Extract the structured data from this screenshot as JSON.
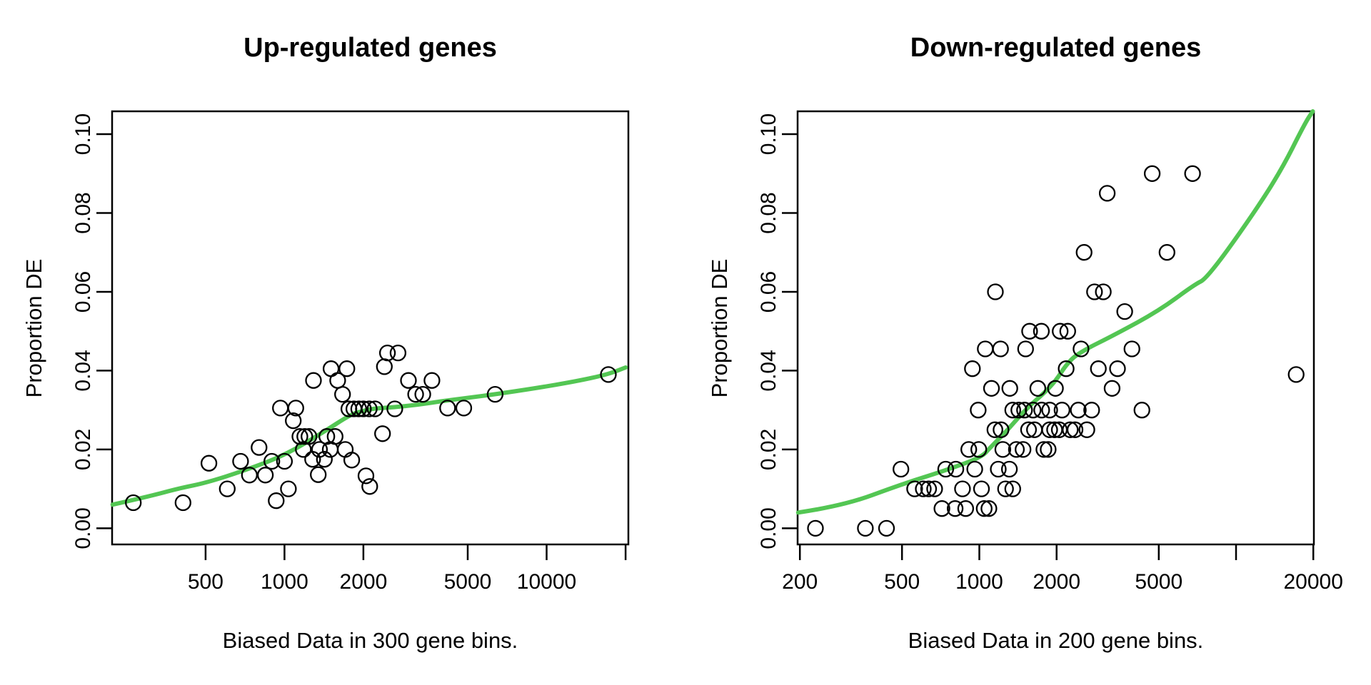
{
  "figure": {
    "left_title": "Up-regulated genes",
    "right_title": "Down-regulated genes",
    "left_xlabel": "Biased Data in 300 gene bins.",
    "right_xlabel": "Biased Data in 200 gene bins.",
    "left_ylabel": "Proportion DE",
    "right_ylabel": "Proportion DE",
    "curve_color": "#53C653",
    "point_color": "#000000"
  },
  "chart_data": [
    {
      "type": "scatter",
      "title": "Up-regulated genes",
      "xlabel": "Biased Data in 300 gene bins.",
      "ylabel": "Proportion DE",
      "xscale": "log",
      "xlim": [
        220,
        20500
      ],
      "ylim": [
        -0.0041,
        0.1058
      ],
      "grid": false,
      "xticks": [
        {
          "v": 500,
          "label": "500"
        },
        {
          "v": 1000,
          "label": "1000"
        },
        {
          "v": 2000,
          "label": "2000"
        },
        {
          "v": 5000,
          "label": "5000"
        },
        {
          "v": 10000,
          "label": "10000"
        },
        {
          "v": 20000,
          "label": ""
        }
      ],
      "yticks": [
        {
          "v": 0.0,
          "label": "0.00"
        },
        {
          "v": 0.02,
          "label": "0.02"
        },
        {
          "v": 0.04,
          "label": "0.04"
        },
        {
          "v": 0.06,
          "label": "0.06"
        },
        {
          "v": 0.08,
          "label": "0.08"
        },
        {
          "v": 0.1,
          "label": "0.10"
        }
      ],
      "points": [
        [
          265,
          0.0065
        ],
        [
          410,
          0.0065
        ],
        [
          515,
          0.0165
        ],
        [
          605,
          0.01
        ],
        [
          680,
          0.017
        ],
        [
          735,
          0.0135
        ],
        [
          800,
          0.0205
        ],
        [
          845,
          0.0135
        ],
        [
          895,
          0.017
        ],
        [
          930,
          0.007
        ],
        [
          965,
          0.0305
        ],
        [
          1000,
          0.017
        ],
        [
          1035,
          0.01
        ],
        [
          1080,
          0.0273
        ],
        [
          1105,
          0.0305
        ],
        [
          1145,
          0.0233
        ],
        [
          1180,
          0.02
        ],
        [
          1195,
          0.0233
        ],
        [
          1240,
          0.0233
        ],
        [
          1280,
          0.0175
        ],
        [
          1290,
          0.0375
        ],
        [
          1345,
          0.0136
        ],
        [
          1360,
          0.02
        ],
        [
          1420,
          0.0175
        ],
        [
          1450,
          0.0233
        ],
        [
          1495,
          0.02
        ],
        [
          1505,
          0.0405
        ],
        [
          1560,
          0.0233
        ],
        [
          1595,
          0.0375
        ],
        [
          1665,
          0.034
        ],
        [
          1705,
          0.02
        ],
        [
          1730,
          0.0405
        ],
        [
          1760,
          0.0303
        ],
        [
          1805,
          0.0173
        ],
        [
          1840,
          0.0303
        ],
        [
          1920,
          0.0303
        ],
        [
          2000,
          0.0303
        ],
        [
          2045,
          0.0133
        ],
        [
          2105,
          0.0303
        ],
        [
          2115,
          0.0106
        ],
        [
          2215,
          0.0303
        ],
        [
          2365,
          0.024
        ],
        [
          2405,
          0.041
        ],
        [
          2470,
          0.0445
        ],
        [
          2635,
          0.0303
        ],
        [
          2710,
          0.0445
        ],
        [
          2970,
          0.0375
        ],
        [
          3165,
          0.034
        ],
        [
          3370,
          0.034
        ],
        [
          3650,
          0.0375
        ],
        [
          4190,
          0.0305
        ],
        [
          4830,
          0.0305
        ],
        [
          6360,
          0.034
        ],
        [
          17200,
          0.039
        ]
      ],
      "trend": [
        [
          221,
          0.006
        ],
        [
          300,
          0.008
        ],
        [
          400,
          0.0102
        ],
        [
          500,
          0.0115
        ],
        [
          700,
          0.0146
        ],
        [
          1000,
          0.0185
        ],
        [
          1400,
          0.0243
        ],
        [
          1800,
          0.029
        ],
        [
          2000,
          0.0298
        ],
        [
          2200,
          0.0304
        ],
        [
          2600,
          0.0307
        ],
        [
          3200,
          0.0313
        ],
        [
          4000,
          0.0323
        ],
        [
          5000,
          0.0331
        ],
        [
          6500,
          0.0341
        ],
        [
          9000,
          0.0355
        ],
        [
          13000,
          0.0373
        ],
        [
          17000,
          0.039
        ],
        [
          20000,
          0.0408
        ]
      ]
    },
    {
      "type": "scatter",
      "title": "Down-regulated genes",
      "xlabel": "Biased Data in 200 gene bins.",
      "ylabel": "Proportion DE",
      "xscale": "log",
      "xlim": [
        196,
        20100
      ],
      "ylim": [
        -0.0041,
        0.1058
      ],
      "grid": false,
      "xticks": [
        {
          "v": 200,
          "label": "200"
        },
        {
          "v": 500,
          "label": "500"
        },
        {
          "v": 1000,
          "label": "1000"
        },
        {
          "v": 2000,
          "label": "2000"
        },
        {
          "v": 5000,
          "label": "5000"
        },
        {
          "v": 10000,
          "label": ""
        },
        {
          "v": 20000,
          "label": "20000"
        }
      ],
      "yticks": [
        {
          "v": 0.0,
          "label": "0.00"
        },
        {
          "v": 0.02,
          "label": "0.02"
        },
        {
          "v": 0.04,
          "label": "0.04"
        },
        {
          "v": 0.06,
          "label": "0.06"
        },
        {
          "v": 0.08,
          "label": "0.08"
        },
        {
          "v": 0.1,
          "label": "0.10"
        }
      ],
      "points": [
        [
          230,
          0.0
        ],
        [
          360,
          0.0
        ],
        [
          435,
          0.0
        ],
        [
          715,
          0.005
        ],
        [
          805,
          0.005
        ],
        [
          885,
          0.005
        ],
        [
          1045,
          0.005
        ],
        [
          1090,
          0.005
        ],
        [
          560,
          0.01
        ],
        [
          605,
          0.01
        ],
        [
          635,
          0.01
        ],
        [
          670,
          0.01
        ],
        [
          860,
          0.01
        ],
        [
          1020,
          0.01
        ],
        [
          1265,
          0.01
        ],
        [
          1350,
          0.01
        ],
        [
          495,
          0.015
        ],
        [
          740,
          0.015
        ],
        [
          810,
          0.015
        ],
        [
          960,
          0.015
        ],
        [
          1185,
          0.015
        ],
        [
          1310,
          0.015
        ],
        [
          910,
          0.02
        ],
        [
          995,
          0.02
        ],
        [
          1235,
          0.02
        ],
        [
          1395,
          0.02
        ],
        [
          1480,
          0.02
        ],
        [
          1785,
          0.02
        ],
        [
          1855,
          0.02
        ],
        [
          1150,
          0.025
        ],
        [
          1215,
          0.025
        ],
        [
          1555,
          0.025
        ],
        [
          1640,
          0.025
        ],
        [
          1880,
          0.025
        ],
        [
          1965,
          0.025
        ],
        [
          2050,
          0.025
        ],
        [
          2260,
          0.025
        ],
        [
          2360,
          0.025
        ],
        [
          2625,
          0.025
        ],
        [
          990,
          0.03
        ],
        [
          1350,
          0.03
        ],
        [
          1425,
          0.03
        ],
        [
          1500,
          0.03
        ],
        [
          1620,
          0.03
        ],
        [
          1750,
          0.03
        ],
        [
          1880,
          0.03
        ],
        [
          2100,
          0.03
        ],
        [
          2430,
          0.03
        ],
        [
          2740,
          0.03
        ],
        [
          4300,
          0.03
        ],
        [
          1115,
          0.0355
        ],
        [
          1315,
          0.0355
        ],
        [
          1690,
          0.0355
        ],
        [
          1980,
          0.0355
        ],
        [
          3290,
          0.0355
        ],
        [
          940,
          0.0405
        ],
        [
          2180,
          0.0405
        ],
        [
          2910,
          0.0405
        ],
        [
          3455,
          0.0405
        ],
        [
          1055,
          0.0455
        ],
        [
          1210,
          0.0455
        ],
        [
          1515,
          0.0455
        ],
        [
          2490,
          0.0455
        ],
        [
          3930,
          0.0455
        ],
        [
          1570,
          0.05
        ],
        [
          1745,
          0.05
        ],
        [
          2065,
          0.05
        ],
        [
          2210,
          0.05
        ],
        [
          3685,
          0.055
        ],
        [
          1155,
          0.06
        ],
        [
          2810,
          0.06
        ],
        [
          3040,
          0.06
        ],
        [
          2560,
          0.07
        ],
        [
          5385,
          0.07
        ],
        [
          3150,
          0.085
        ],
        [
          4715,
          0.09
        ],
        [
          6770,
          0.09
        ],
        [
          17150,
          0.039
        ]
      ],
      "trend": [
        [
          197,
          0.004
        ],
        [
          295,
          0.0057
        ],
        [
          500,
          0.0112
        ],
        [
          725,
          0.0145
        ],
        [
          1020,
          0.018
        ],
        [
          1100,
          0.0204
        ],
        [
          1305,
          0.0253
        ],
        [
          1520,
          0.0303
        ],
        [
          1930,
          0.0362
        ],
        [
          2215,
          0.0422
        ],
        [
          2500,
          0.0449
        ],
        [
          3390,
          0.0492
        ],
        [
          5000,
          0.0552
        ],
        [
          6880,
          0.0618
        ],
        [
          7700,
          0.0634
        ],
        [
          11300,
          0.0784
        ],
        [
          14900,
          0.0905
        ],
        [
          18500,
          0.1026
        ],
        [
          19900,
          0.1058
        ]
      ]
    }
  ]
}
